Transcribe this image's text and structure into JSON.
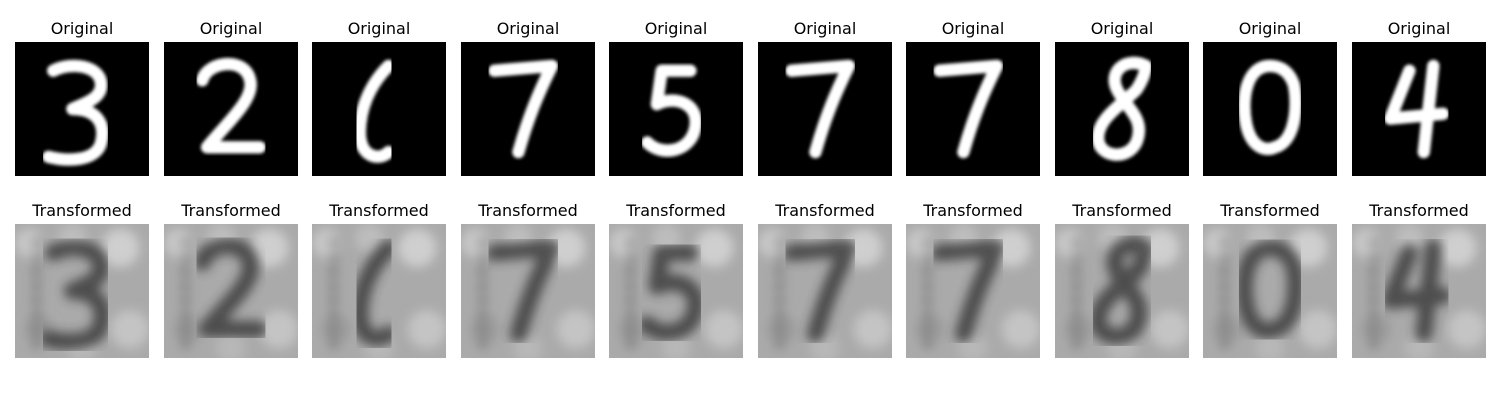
{
  "figure": {
    "rows": [
      {
        "label": "Original",
        "style": "original",
        "digits": [
          "3",
          "2",
          "6",
          "7",
          "5",
          "7",
          "7",
          "8",
          "0",
          "4"
        ]
      },
      {
        "label": "Transformed",
        "style": "transformed",
        "digits": [
          "3",
          "2",
          "6",
          "7",
          "5",
          "7",
          "7",
          "8",
          "0",
          "4"
        ]
      }
    ],
    "colors": {
      "original_bg": "#000000",
      "original_fg": "#ffffff",
      "transformed_bg": "#aaaaaa",
      "transformed_fg": "#2e2e2e"
    }
  }
}
